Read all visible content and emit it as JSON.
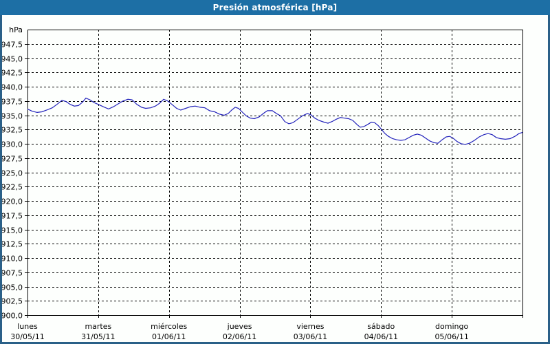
{
  "window": {
    "title": "Presión atmosférica [hPa]",
    "title_bg": "#1d6fa5",
    "title_color": "#ffffff",
    "border_color": "#2a6088"
  },
  "chart_data": {
    "type": "line",
    "title": "Presión atmosférica [hPa]",
    "unit_label": "hPa",
    "ylim": [
      900,
      950
    ],
    "ytick_step": 2.5,
    "ytick_labels": [
      "947,5",
      "945,0",
      "942,5",
      "940,0",
      "937,5",
      "935,0",
      "932,5",
      "930,0",
      "927,5",
      "925,0",
      "922,5",
      "920,0",
      "917,5",
      "915,0",
      "912,5",
      "910,0",
      "907,5",
      "905,0",
      "902,5",
      "900,0"
    ],
    "grid": "dashed",
    "legend": "none",
    "line_color": "#2222bb",
    "axis_color": "#000000",
    "x_range_hours": [
      0,
      168
    ],
    "x_day_span_hours": 24,
    "day_labels": [
      {
        "hour": 0,
        "day": "lunes",
        "date": "30/05/11"
      },
      {
        "hour": 24,
        "day": "martes",
        "date": "31/05/11"
      },
      {
        "hour": 48,
        "day": "miércoles",
        "date": "01/06/11"
      },
      {
        "hour": 72,
        "day": "jueves",
        "date": "02/06/11"
      },
      {
        "hour": 96,
        "day": "viernes",
        "date": "03/06/11"
      },
      {
        "hour": 120,
        "day": "sábado",
        "date": "04/06/11"
      },
      {
        "hour": 144,
        "day": "domingo",
        "date": "05/06/11"
      }
    ],
    "series": [
      {
        "name": "Presión atmosférica",
        "points": [
          [
            0,
            936.1
          ],
          [
            1.6,
            935.7
          ],
          [
            3.3,
            935.5
          ],
          [
            4.9,
            935.6
          ],
          [
            6.5,
            935.9
          ],
          [
            8.4,
            936.3
          ],
          [
            10,
            936.9
          ],
          [
            11.7,
            937.6
          ],
          [
            13.1,
            937.4
          ],
          [
            14.5,
            936.9
          ],
          [
            15.9,
            936.6
          ],
          [
            17.3,
            936.7
          ],
          [
            18.7,
            937.3
          ],
          [
            19.8,
            938.0
          ],
          [
            21.2,
            937.7
          ],
          [
            22.6,
            937.2
          ],
          [
            24,
            936.9
          ],
          [
            25.7,
            936.5
          ],
          [
            27.5,
            936.1
          ],
          [
            29.2,
            936.5
          ],
          [
            30.8,
            937.0
          ],
          [
            32.4,
            937.5
          ],
          [
            34.1,
            937.8
          ],
          [
            35.5,
            937.7
          ],
          [
            37.1,
            936.9
          ],
          [
            38.7,
            936.4
          ],
          [
            40.1,
            936.2
          ],
          [
            41.8,
            936.3
          ],
          [
            43.4,
            936.6
          ],
          [
            44.8,
            937.1
          ],
          [
            46.2,
            937.8
          ],
          [
            47.6,
            937.5
          ],
          [
            49,
            936.9
          ],
          [
            50.6,
            936.2
          ],
          [
            52,
            935.9
          ],
          [
            53.7,
            936.2
          ],
          [
            55.3,
            936.5
          ],
          [
            56.9,
            936.6
          ],
          [
            58.6,
            936.4
          ],
          [
            60.2,
            936.3
          ],
          [
            61.8,
            935.8
          ],
          [
            63.5,
            935.6
          ],
          [
            65.1,
            935.2
          ],
          [
            66.7,
            935.0
          ],
          [
            68.1,
            935.3
          ],
          [
            69.3,
            935.9
          ],
          [
            70.5,
            936.4
          ],
          [
            71.6,
            936.2
          ],
          [
            72.8,
            935.6
          ],
          [
            74.2,
            934.9
          ],
          [
            75.6,
            934.5
          ],
          [
            77,
            934.4
          ],
          [
            78.6,
            934.7
          ],
          [
            80,
            935.3
          ],
          [
            81.4,
            935.8
          ],
          [
            83.1,
            935.8
          ],
          [
            84.5,
            935.3
          ],
          [
            85.9,
            934.9
          ],
          [
            87.3,
            933.9
          ],
          [
            88.7,
            933.5
          ],
          [
            90.1,
            933.7
          ],
          [
            91.7,
            934.3
          ],
          [
            93.3,
            934.9
          ],
          [
            95,
            935.3
          ],
          [
            96.1,
            935.1
          ],
          [
            97.5,
            934.5
          ],
          [
            98.9,
            934.1
          ],
          [
            100.6,
            933.8
          ],
          [
            102,
            933.6
          ],
          [
            103.4,
            933.9
          ],
          [
            104.8,
            934.3
          ],
          [
            106.2,
            934.6
          ],
          [
            107.6,
            934.5
          ],
          [
            109,
            934.4
          ],
          [
            110.4,
            934.1
          ],
          [
            111.8,
            933.4
          ],
          [
            112.9,
            932.9
          ],
          [
            114.1,
            933.0
          ],
          [
            115.5,
            933.4
          ],
          [
            116.7,
            933.8
          ],
          [
            117.8,
            933.7
          ],
          [
            119,
            933.2
          ],
          [
            120.2,
            932.5
          ],
          [
            121.3,
            931.8
          ],
          [
            122.5,
            931.3
          ],
          [
            123.9,
            930.9
          ],
          [
            125.3,
            930.7
          ],
          [
            126.7,
            930.6
          ],
          [
            128.1,
            930.7
          ],
          [
            129.5,
            931.1
          ],
          [
            130.9,
            931.5
          ],
          [
            132.3,
            931.7
          ],
          [
            133.7,
            931.5
          ],
          [
            135.1,
            931.0
          ],
          [
            136.5,
            930.5
          ],
          [
            137.9,
            930.2
          ],
          [
            139.3,
            930.1
          ],
          [
            140.7,
            930.7
          ],
          [
            142.1,
            931.2
          ],
          [
            143.3,
            931.3
          ],
          [
            144.4,
            931.0
          ],
          [
            145.8,
            930.4
          ],
          [
            147.2,
            930.0
          ],
          [
            148.6,
            929.9
          ],
          [
            150,
            930.1
          ],
          [
            151.7,
            930.6
          ],
          [
            153.3,
            931.2
          ],
          [
            154.9,
            931.6
          ],
          [
            156.3,
            931.8
          ],
          [
            157.7,
            931.6
          ],
          [
            159.1,
            931.1
          ],
          [
            160.5,
            930.9
          ],
          [
            162.2,
            930.8
          ],
          [
            163.8,
            930.9
          ],
          [
            165.4,
            931.3
          ],
          [
            166.8,
            931.8
          ],
          [
            168,
            932.0
          ]
        ]
      }
    ]
  }
}
